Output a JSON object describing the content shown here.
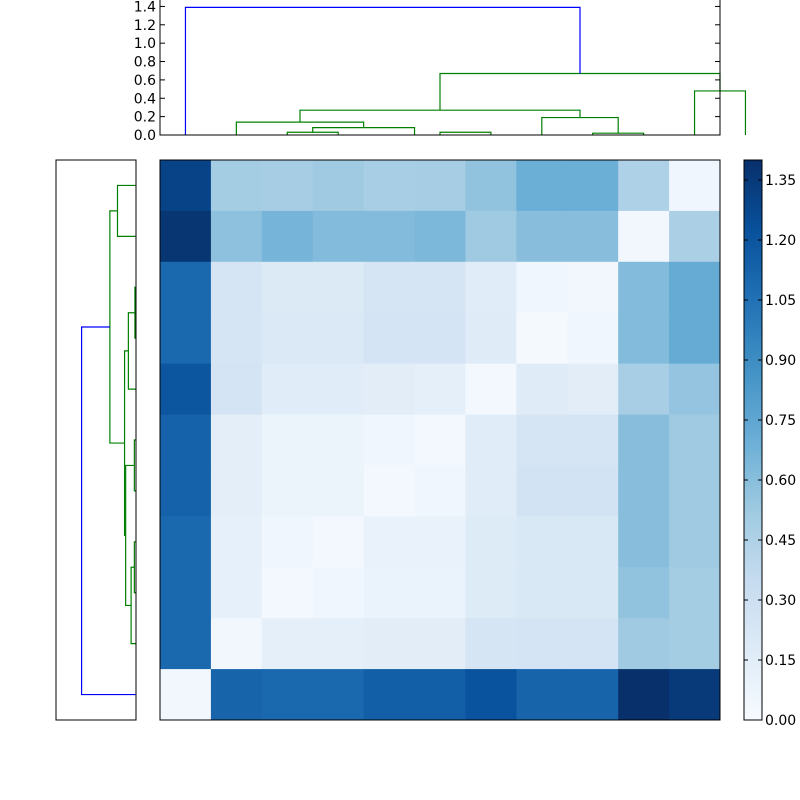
{
  "chart_data": [
    {
      "type": "dendrogram",
      "panel": "top",
      "y_ticks": [
        "0.0",
        "0.2",
        "0.4",
        "0.6",
        "0.8",
        "1.0",
        "1.2",
        "1.4"
      ],
      "ylim": [
        0,
        1.47
      ],
      "leaf_count": 11,
      "links": [
        {
          "left_x": 2.5,
          "right_x": 3.5,
          "left_h": 0.0,
          "right_h": 0.0,
          "h": 0.03,
          "color": "#008000"
        },
        {
          "left_x": 3.0,
          "right_x": 5.0,
          "left_h": 0.03,
          "right_h": 0.0,
          "h": 0.08,
          "color": "#008000"
        },
        {
          "left_x": 1.5,
          "right_x": 4.0,
          "left_h": 0.0,
          "right_h": 0.08,
          "h": 0.14,
          "color": "#008000"
        },
        {
          "left_x": 5.5,
          "right_x": 6.5,
          "left_h": 0.0,
          "right_h": 0.0,
          "h": 0.03,
          "color": "#008000"
        },
        {
          "left_x": 8.5,
          "right_x": 9.5,
          "left_h": 0.0,
          "right_h": 0.0,
          "h": 0.02,
          "color": "#008000"
        },
        {
          "left_x": 7.5,
          "right_x": 9.0,
          "left_h": 0.0,
          "right_h": 0.02,
          "h": 0.19,
          "color": "#008000"
        },
        {
          "left_x": 2.75,
          "right_x": 8.25,
          "left_h": 0.14,
          "right_h": 0.19,
          "h": 0.27,
          "color": "#008000"
        },
        {
          "left_x": 10.5,
          "right_x": 11.5,
          "left_h": 0.0,
          "right_h": 0.0,
          "h": 0.48,
          "color": "#008000"
        },
        {
          "left_x": 5.5,
          "right_x": 11.0,
          "left_h": 0.27,
          "right_h": 0.48,
          "h": 0.67,
          "color": "#008000"
        },
        {
          "left_x": 0.5,
          "right_x": 8.25,
          "left_h": 0.0,
          "right_h": 0.67,
          "h": 1.39,
          "color": "#0000ff"
        }
      ]
    },
    {
      "type": "dendrogram",
      "panel": "left",
      "xlim": [
        1.47,
        0
      ],
      "leaf_count": 11,
      "links": [
        {
          "top_y": 0.5,
          "bottom_y": 1.5,
          "top_h": 0.0,
          "bottom_h": 0.0,
          "h": 0.34,
          "color": "#008000"
        },
        {
          "top_y": 2.5,
          "bottom_y": 3.5,
          "top_h": 0.0,
          "bottom_h": 0.0,
          "h": 0.02,
          "color": "#008000"
        },
        {
          "top_y": 3.0,
          "bottom_y": 4.5,
          "top_h": 0.02,
          "bottom_h": 0.0,
          "h": 0.14,
          "color": "#008000"
        },
        {
          "top_y": 5.5,
          "bottom_y": 6.5,
          "top_h": 0.0,
          "bottom_h": 0.0,
          "h": 0.03,
          "color": "#008000"
        },
        {
          "top_y": 7.5,
          "bottom_y": 8.5,
          "top_h": 0.0,
          "bottom_h": 0.0,
          "h": 0.03,
          "color": "#008000"
        },
        {
          "top_y": 8.0,
          "bottom_y": 9.5,
          "top_h": 0.03,
          "bottom_h": 0.0,
          "h": 0.09,
          "color": "#008000"
        },
        {
          "top_y": 6.0,
          "bottom_y": 8.75,
          "top_h": 0.03,
          "bottom_h": 0.09,
          "h": 0.19,
          "color": "#008000"
        },
        {
          "top_y": 3.75,
          "bottom_y": 7.375,
          "top_h": 0.14,
          "bottom_h": 0.19,
          "h": 0.21,
          "color": "#008000"
        },
        {
          "top_y": 1.0,
          "bottom_y": 5.56,
          "top_h": 0.34,
          "bottom_h": 0.21,
          "h": 0.48,
          "color": "#008000"
        },
        {
          "top_y": 3.28,
          "bottom_y": 10.5,
          "top_h": 0.48,
          "bottom_h": 0.0,
          "h": 1.0,
          "color": "#0000ff"
        }
      ]
    },
    {
      "type": "heatmap",
      "rows": 11,
      "cols": 11,
      "values": [
        [
          1.3,
          0.5,
          0.49,
          0.52,
          0.48,
          0.49,
          0.57,
          0.7,
          0.7,
          0.45,
          0.05
        ],
        [
          1.37,
          0.58,
          0.66,
          0.62,
          0.62,
          0.64,
          0.52,
          0.6,
          0.6,
          0.04,
          0.47
        ],
        [
          1.1,
          0.24,
          0.19,
          0.19,
          0.24,
          0.24,
          0.16,
          0.05,
          0.04,
          0.62,
          0.72
        ],
        [
          1.1,
          0.24,
          0.2,
          0.2,
          0.25,
          0.25,
          0.17,
          0.02,
          0.05,
          0.62,
          0.72
        ],
        [
          1.2,
          0.25,
          0.16,
          0.16,
          0.15,
          0.13,
          0.03,
          0.17,
          0.15,
          0.48,
          0.56
        ],
        [
          1.13,
          0.14,
          0.08,
          0.08,
          0.05,
          0.03,
          0.16,
          0.24,
          0.24,
          0.6,
          0.52
        ],
        [
          1.13,
          0.14,
          0.08,
          0.08,
          0.03,
          0.05,
          0.16,
          0.26,
          0.26,
          0.6,
          0.52
        ],
        [
          1.1,
          0.12,
          0.05,
          0.03,
          0.1,
          0.1,
          0.18,
          0.21,
          0.21,
          0.6,
          0.52
        ],
        [
          1.1,
          0.12,
          0.03,
          0.05,
          0.09,
          0.09,
          0.18,
          0.21,
          0.21,
          0.57,
          0.5
        ],
        [
          1.1,
          0.04,
          0.13,
          0.13,
          0.15,
          0.15,
          0.24,
          0.25,
          0.25,
          0.52,
          0.5
        ],
        [
          0.04,
          1.12,
          1.1,
          1.1,
          1.15,
          1.15,
          1.22,
          1.12,
          1.12,
          1.4,
          1.35
        ]
      ],
      "colormap": "Blues",
      "vmin": 0.0,
      "vmax": 1.4,
      "colorbar_ticks": [
        "0.00",
        "0.15",
        "0.30",
        "0.45",
        "0.60",
        "0.75",
        "0.90",
        "1.05",
        "1.20",
        "1.35"
      ]
    }
  ]
}
